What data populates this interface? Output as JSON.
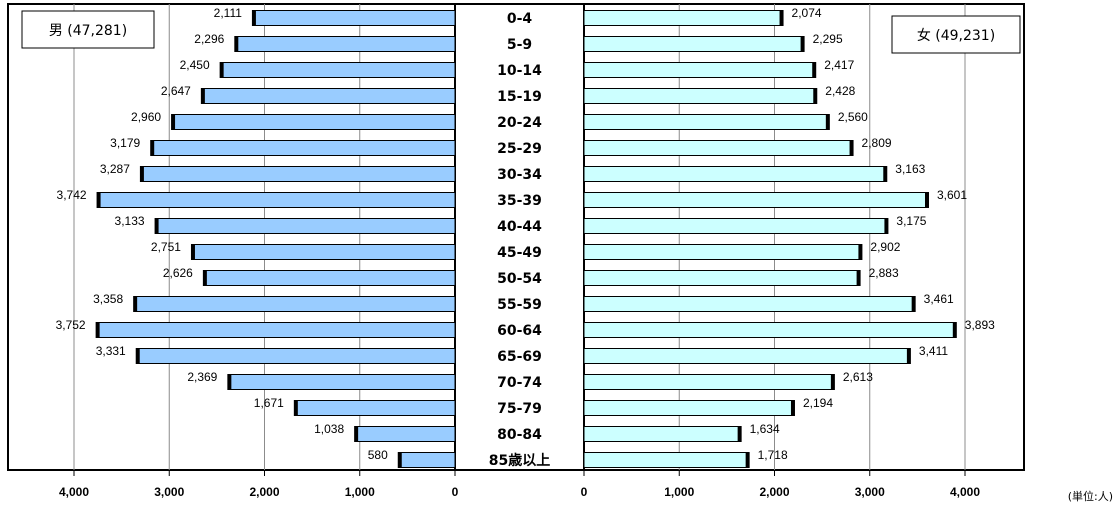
{
  "chart_data": {
    "type": "population_pyramid",
    "unit_label": "(単位:人)",
    "age_groups": [
      "0-4",
      "5-9",
      "10-14",
      "15-19",
      "20-24",
      "25-29",
      "30-34",
      "35-39",
      "40-44",
      "45-49",
      "50-54",
      "55-59",
      "60-64",
      "65-69",
      "70-74",
      "75-79",
      "80-84",
      "85歳以上"
    ],
    "male": {
      "legend": "男 (47,281)",
      "values": [
        2111,
        2296,
        2450,
        2647,
        2960,
        3179,
        3287,
        3742,
        3133,
        2751,
        2626,
        3358,
        3752,
        3331,
        2369,
        1671,
        1038,
        580
      ],
      "labels": [
        "2,111",
        "2,296",
        "2,450",
        "2,647",
        "2,960",
        "3,179",
        "3,287",
        "3,742",
        "3,133",
        "2,751",
        "2,626",
        "3,358",
        "3,752",
        "3,331",
        "2,369",
        "1,671",
        "1,038",
        "580"
      ],
      "color": "#99ccff"
    },
    "female": {
      "legend": "女 (49,231)",
      "values": [
        2074,
        2295,
        2417,
        2428,
        2560,
        2809,
        3163,
        3601,
        3175,
        2902,
        2883,
        3461,
        3893,
        3411,
        2613,
        2194,
        1634,
        1718
      ],
      "labels": [
        "2,074",
        "2,295",
        "2,417",
        "2,428",
        "2,560",
        "2,809",
        "3,163",
        "3,601",
        "3,175",
        "2,902",
        "2,883",
        "3,461",
        "3,893",
        "3,411",
        "2,613",
        "2,194",
        "1,634",
        "1,718"
      ],
      "color": "#ccffff"
    },
    "axis": {
      "max": 4000,
      "ticks": [
        0,
        1000,
        2000,
        3000,
        4000
      ],
      "tick_labels": [
        "0",
        "1,000",
        "2,000",
        "3,000",
        "4,000"
      ]
    },
    "grid": true
  }
}
